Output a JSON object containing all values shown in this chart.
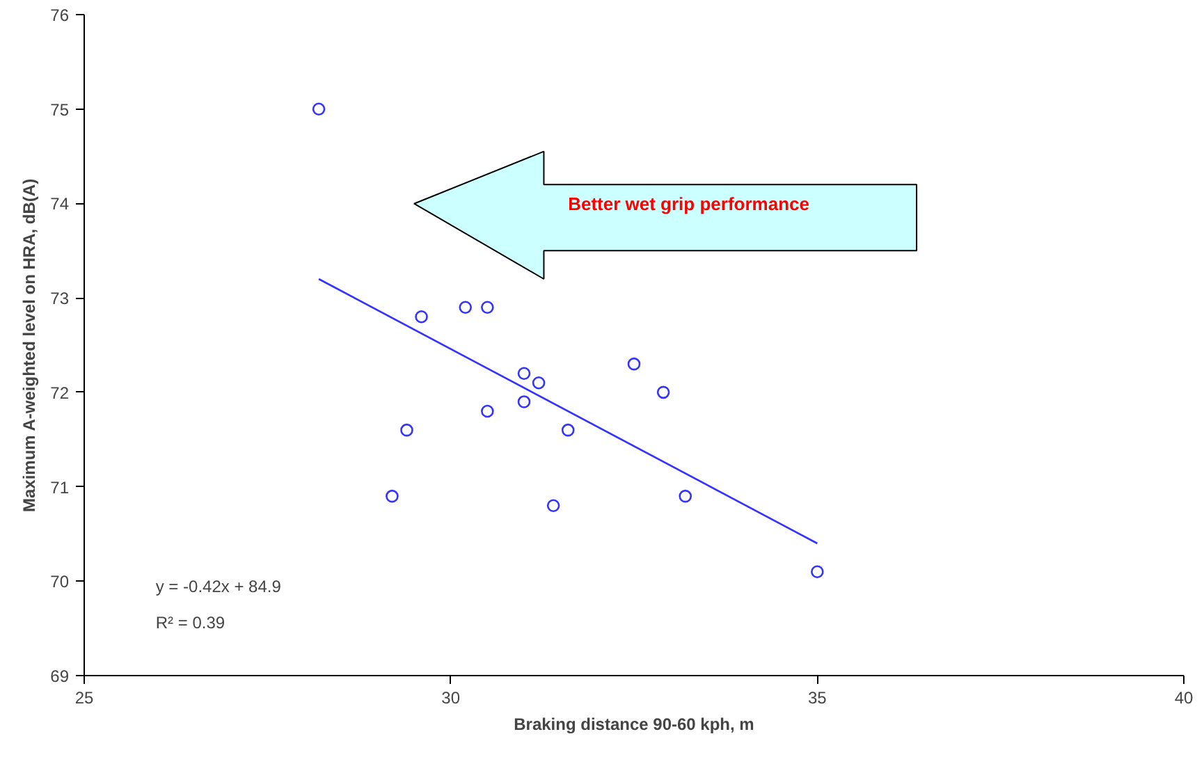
{
  "chart_data": {
    "type": "scatter",
    "xlabel": "Braking distance 90-60 kph, m",
    "ylabel": "Maximum A-weighted level on HRA, dB(A)",
    "xlim": [
      25,
      40
    ],
    "xticks": [
      25,
      30,
      35,
      40
    ],
    "ylim": [
      69,
      76
    ],
    "yticks": [
      69,
      70,
      71,
      72,
      73,
      74,
      75,
      76
    ],
    "grid": false,
    "marker": "circle",
    "series": [
      {
        "color": "#3333ff",
        "x": [
          28.2,
          29.6,
          30.2,
          30.5,
          31.0,
          31.2,
          31.0,
          30.5,
          29.4,
          31.6,
          32.5,
          32.9,
          29.2,
          31.4,
          33.2,
          35.0
        ],
        "values": [
          75.0,
          72.8,
          72.9,
          72.9,
          72.2,
          72.1,
          71.9,
          71.8,
          71.6,
          71.6,
          72.3,
          72.0,
          70.9,
          70.8,
          70.9,
          70.1
        ]
      },
      {
        "type": "line",
        "marker": "none",
        "color": "#3333ff",
        "x": [
          28.2,
          35.0
        ],
        "values": [
          73.2,
          70.4
        ]
      }
    ],
    "annotations": [
      "Better wet grip performance",
      "y = -0.42x + 84.9",
      "R² = 0.39"
    ]
  }
}
